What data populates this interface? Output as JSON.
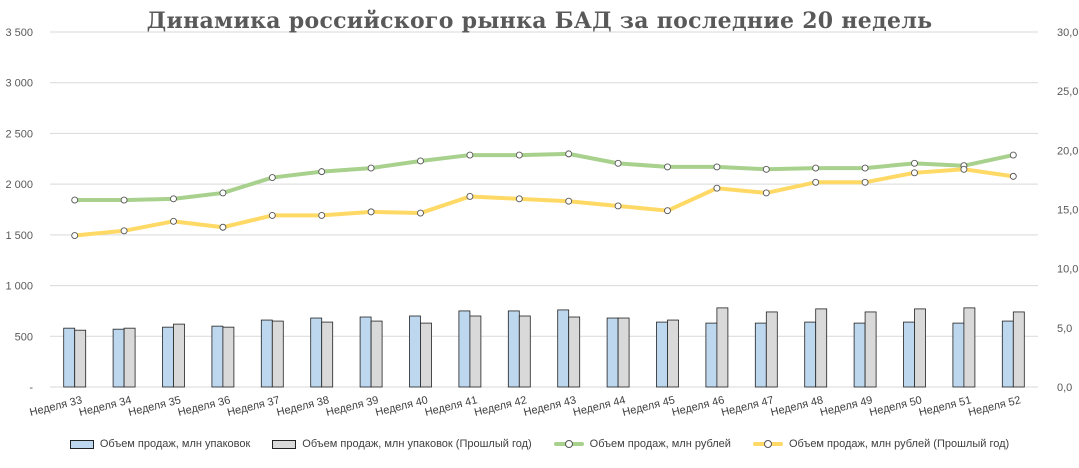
{
  "title": "Динамика российского рынка БАД за последние 20 недель",
  "colors": {
    "bar_current": "#bdd7ee",
    "bar_previous": "#d9d9d9",
    "line_current": "#a9d18e",
    "line_previous": "#ffd966"
  },
  "left_axis": {
    "min": 0,
    "max": 3500,
    "ticks": [
      "-",
      "500",
      "1 000",
      "1 500",
      "2 000",
      "2 500",
      "3 000",
      "3 500"
    ]
  },
  "right_axis": {
    "min": 0,
    "max": 30,
    "ticks": [
      "0,0",
      "5,0",
      "10,0",
      "15,0",
      "20,0",
      "25,0",
      "30,0"
    ]
  },
  "legend": [
    {
      "label": "Объем продаж, млн упаковок",
      "kind": "bar",
      "color": "#bdd7ee"
    },
    {
      "label": "Объем продаж, млн упаковок (Прошлый год)",
      "kind": "bar",
      "color": "#d9d9d9"
    },
    {
      "label": "Объем продаж, млн рублей",
      "kind": "line",
      "color": "#a9d18e"
    },
    {
      "label": "Объем продаж, млн рублей (Прошлый год)",
      "kind": "line",
      "color": "#ffd966"
    }
  ],
  "chart_data": {
    "type": "bar",
    "title": "Динамика российского рынка БАД за последние 20 недель",
    "xlabel": "",
    "ylabel": "",
    "ylim": [
      0,
      3500
    ],
    "y2lim": [
      0,
      30
    ],
    "grid": true,
    "legend_position": "bottom",
    "categories": [
      "Неделя 33",
      "Неделя 34",
      "Неделя 35",
      "Неделя 36",
      "Неделя 37",
      "Неделя 38",
      "Неделя 39",
      "Неделя 40",
      "Неделя 41",
      "Неделя 42",
      "Неделя 43",
      "Неделя 44",
      "Неделя 45",
      "Неделя 46",
      "Неделя 47",
      "Неделя 48",
      "Неделя 49",
      "Неделя 50",
      "Неделя 51",
      "Неделя 52"
    ],
    "series": [
      {
        "name": "Объем продаж, млн упаковок",
        "type": "bar",
        "axis": "left",
        "values": [
          580,
          570,
          590,
          600,
          660,
          680,
          690,
          700,
          750,
          750,
          760,
          680,
          640,
          630,
          630,
          640,
          630,
          640,
          630,
          650
        ]
      },
      {
        "name": "Объем продаж, млн упаковок (Прошлый год)",
        "type": "bar",
        "axis": "left",
        "values": [
          560,
          580,
          620,
          590,
          650,
          640,
          650,
          630,
          700,
          700,
          690,
          680,
          660,
          780,
          740,
          770,
          740,
          770,
          780,
          740
        ]
      },
      {
        "name": "Объем продаж, млн рублей",
        "type": "line",
        "axis": "right",
        "values": [
          15.8,
          15.8,
          15.9,
          16.4,
          17.7,
          18.2,
          18.5,
          19.1,
          19.6,
          19.6,
          19.7,
          18.9,
          18.6,
          18.6,
          18.4,
          18.5,
          18.5,
          18.9,
          18.7,
          19.6
        ]
      },
      {
        "name": "Объем продаж, млн рублей (Прошлый год)",
        "type": "line",
        "axis": "right",
        "values": [
          12.8,
          13.2,
          14.0,
          13.5,
          14.5,
          14.5,
          14.8,
          14.7,
          16.1,
          15.9,
          15.7,
          15.3,
          14.9,
          16.8,
          16.4,
          17.3,
          17.3,
          18.1,
          18.4,
          17.8
        ]
      }
    ]
  }
}
